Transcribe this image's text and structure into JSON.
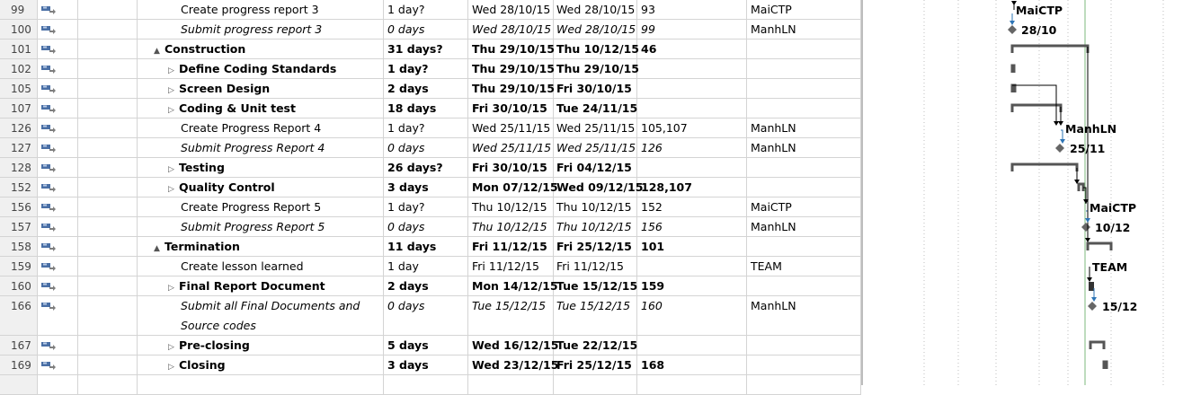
{
  "colors": {
    "grid_line": "#d4d4d4",
    "id_bg": "#f0f0f0",
    "mode_icon": "#4a6fa5",
    "link_arrow": "#2e75b6",
    "today_line": "#7cb87c"
  },
  "rows": [
    {
      "id": "99",
      "name": "Create progress report 3",
      "level": 2,
      "style": "normal",
      "expand": "",
      "duration": "1 day?",
      "start": "Wed 28/10/15",
      "finish": "Wed 28/10/15",
      "predecessors": "93",
      "resource": "MaiCTP"
    },
    {
      "id": "100",
      "name": "Submit progress report 3",
      "level": 2,
      "style": "italic",
      "expand": "",
      "duration": "0 days",
      "start": "Wed 28/10/15",
      "finish": "Wed 28/10/15",
      "predecessors": "99",
      "resource": "ManhLN"
    },
    {
      "id": "101",
      "name": "Construction",
      "level": 1,
      "style": "bold",
      "expand": "▲",
      "duration": "31 days?",
      "start": "Thu 29/10/15",
      "finish": "Thu 10/12/15",
      "predecessors": "46",
      "resource": ""
    },
    {
      "id": "102",
      "name": "Define Coding Standards",
      "level": 2,
      "style": "bold",
      "expand": "▷",
      "duration": "1 day?",
      "start": "Thu 29/10/15",
      "finish": "Thu 29/10/15",
      "predecessors": "",
      "resource": ""
    },
    {
      "id": "105",
      "name": "Screen Design",
      "level": 2,
      "style": "bold",
      "expand": "▷",
      "duration": "2 days",
      "start": "Thu 29/10/15",
      "finish": "Fri 30/10/15",
      "predecessors": "",
      "resource": ""
    },
    {
      "id": "107",
      "name": "Coding & Unit test",
      "level": 2,
      "style": "bold",
      "expand": "▷",
      "duration": "18 days",
      "start": "Fri 30/10/15",
      "finish": "Tue 24/11/15",
      "predecessors": "",
      "resource": ""
    },
    {
      "id": "126",
      "name": "Create Progress Report 4",
      "level": 2,
      "style": "normal",
      "expand": "",
      "duration": "1 day?",
      "start": "Wed 25/11/15",
      "finish": "Wed 25/11/15",
      "predecessors": "105,107",
      "resource": "ManhLN"
    },
    {
      "id": "127",
      "name": "Submit Progress Report 4",
      "level": 2,
      "style": "italic",
      "expand": "",
      "duration": "0 days",
      "start": "Wed 25/11/15",
      "finish": "Wed 25/11/15",
      "predecessors": "126",
      "resource": "ManhLN"
    },
    {
      "id": "128",
      "name": "Testing",
      "level": 2,
      "style": "bold",
      "expand": "▷",
      "duration": "26 days?",
      "start": "Fri 30/10/15",
      "finish": "Fri 04/12/15",
      "predecessors": "",
      "resource": ""
    },
    {
      "id": "152",
      "name": "Quality Control",
      "level": 2,
      "style": "bold",
      "expand": "▷",
      "duration": "3 days",
      "start": "Mon 07/12/15",
      "finish": "Wed 09/12/15",
      "predecessors": "128,107",
      "resource": ""
    },
    {
      "id": "156",
      "name": "Create Progress Report 5",
      "level": 2,
      "style": "normal",
      "expand": "",
      "duration": "1 day?",
      "start": "Thu 10/12/15",
      "finish": "Thu 10/12/15",
      "predecessors": "152",
      "resource": "MaiCTP"
    },
    {
      "id": "157",
      "name": "Submit Progress Report 5",
      "level": 2,
      "style": "italic",
      "expand": "",
      "duration": "0 days",
      "start": "Thu 10/12/15",
      "finish": "Thu 10/12/15",
      "predecessors": "156",
      "resource": "ManhLN"
    },
    {
      "id": "158",
      "name": "Termination",
      "level": 1,
      "style": "bold",
      "expand": "▲",
      "duration": "11 days",
      "start": "Fri 11/12/15",
      "finish": "Fri 25/12/15",
      "predecessors": "101",
      "resource": ""
    },
    {
      "id": "159",
      "name": "Create lesson learned",
      "level": 2,
      "style": "normal",
      "expand": "",
      "duration": "1 day",
      "start": "Fri 11/12/15",
      "finish": "Fri 11/12/15",
      "predecessors": "",
      "resource": "TEAM"
    },
    {
      "id": "160",
      "name": "Final Report Document",
      "level": 2,
      "style": "bold",
      "expand": "▷",
      "duration": "2 days",
      "start": "Mon 14/12/15",
      "finish": "Tue 15/12/15",
      "predecessors": "159",
      "resource": ""
    },
    {
      "id": "166",
      "name": "Submit all Final Documents and Source codes",
      "level": 2,
      "style": "italic",
      "expand": "",
      "duration": "0 days",
      "start": "Tue 15/12/15",
      "finish": "Tue 15/12/15",
      "predecessors": "160",
      "resource": "ManhLN",
      "tall": true
    },
    {
      "id": "167",
      "name": "Pre-closing",
      "level": 2,
      "style": "bold",
      "expand": "▷",
      "duration": "5 days",
      "start": "Wed 16/12/15",
      "finish": "Tue 22/12/15",
      "predecessors": "",
      "resource": ""
    },
    {
      "id": "169",
      "name": "Closing",
      "level": 2,
      "style": "bold",
      "expand": "▷",
      "duration": "3 days",
      "start": "Wed 23/12/15",
      "finish": "Fri 25/12/15",
      "predecessors": "168",
      "resource": ""
    }
  ],
  "gantt_labels": [
    {
      "text": "MaiCTP",
      "row": "99"
    },
    {
      "text": "28/10",
      "row": "100"
    },
    {
      "text": "ManhLN",
      "row": "126"
    },
    {
      "text": "25/11",
      "row": "127"
    },
    {
      "text": "MaiCTP",
      "row": "156"
    },
    {
      "text": "10/12",
      "row": "157"
    },
    {
      "text": "TEAM",
      "row": "159"
    },
    {
      "text": "15/12",
      "row": "166"
    }
  ]
}
